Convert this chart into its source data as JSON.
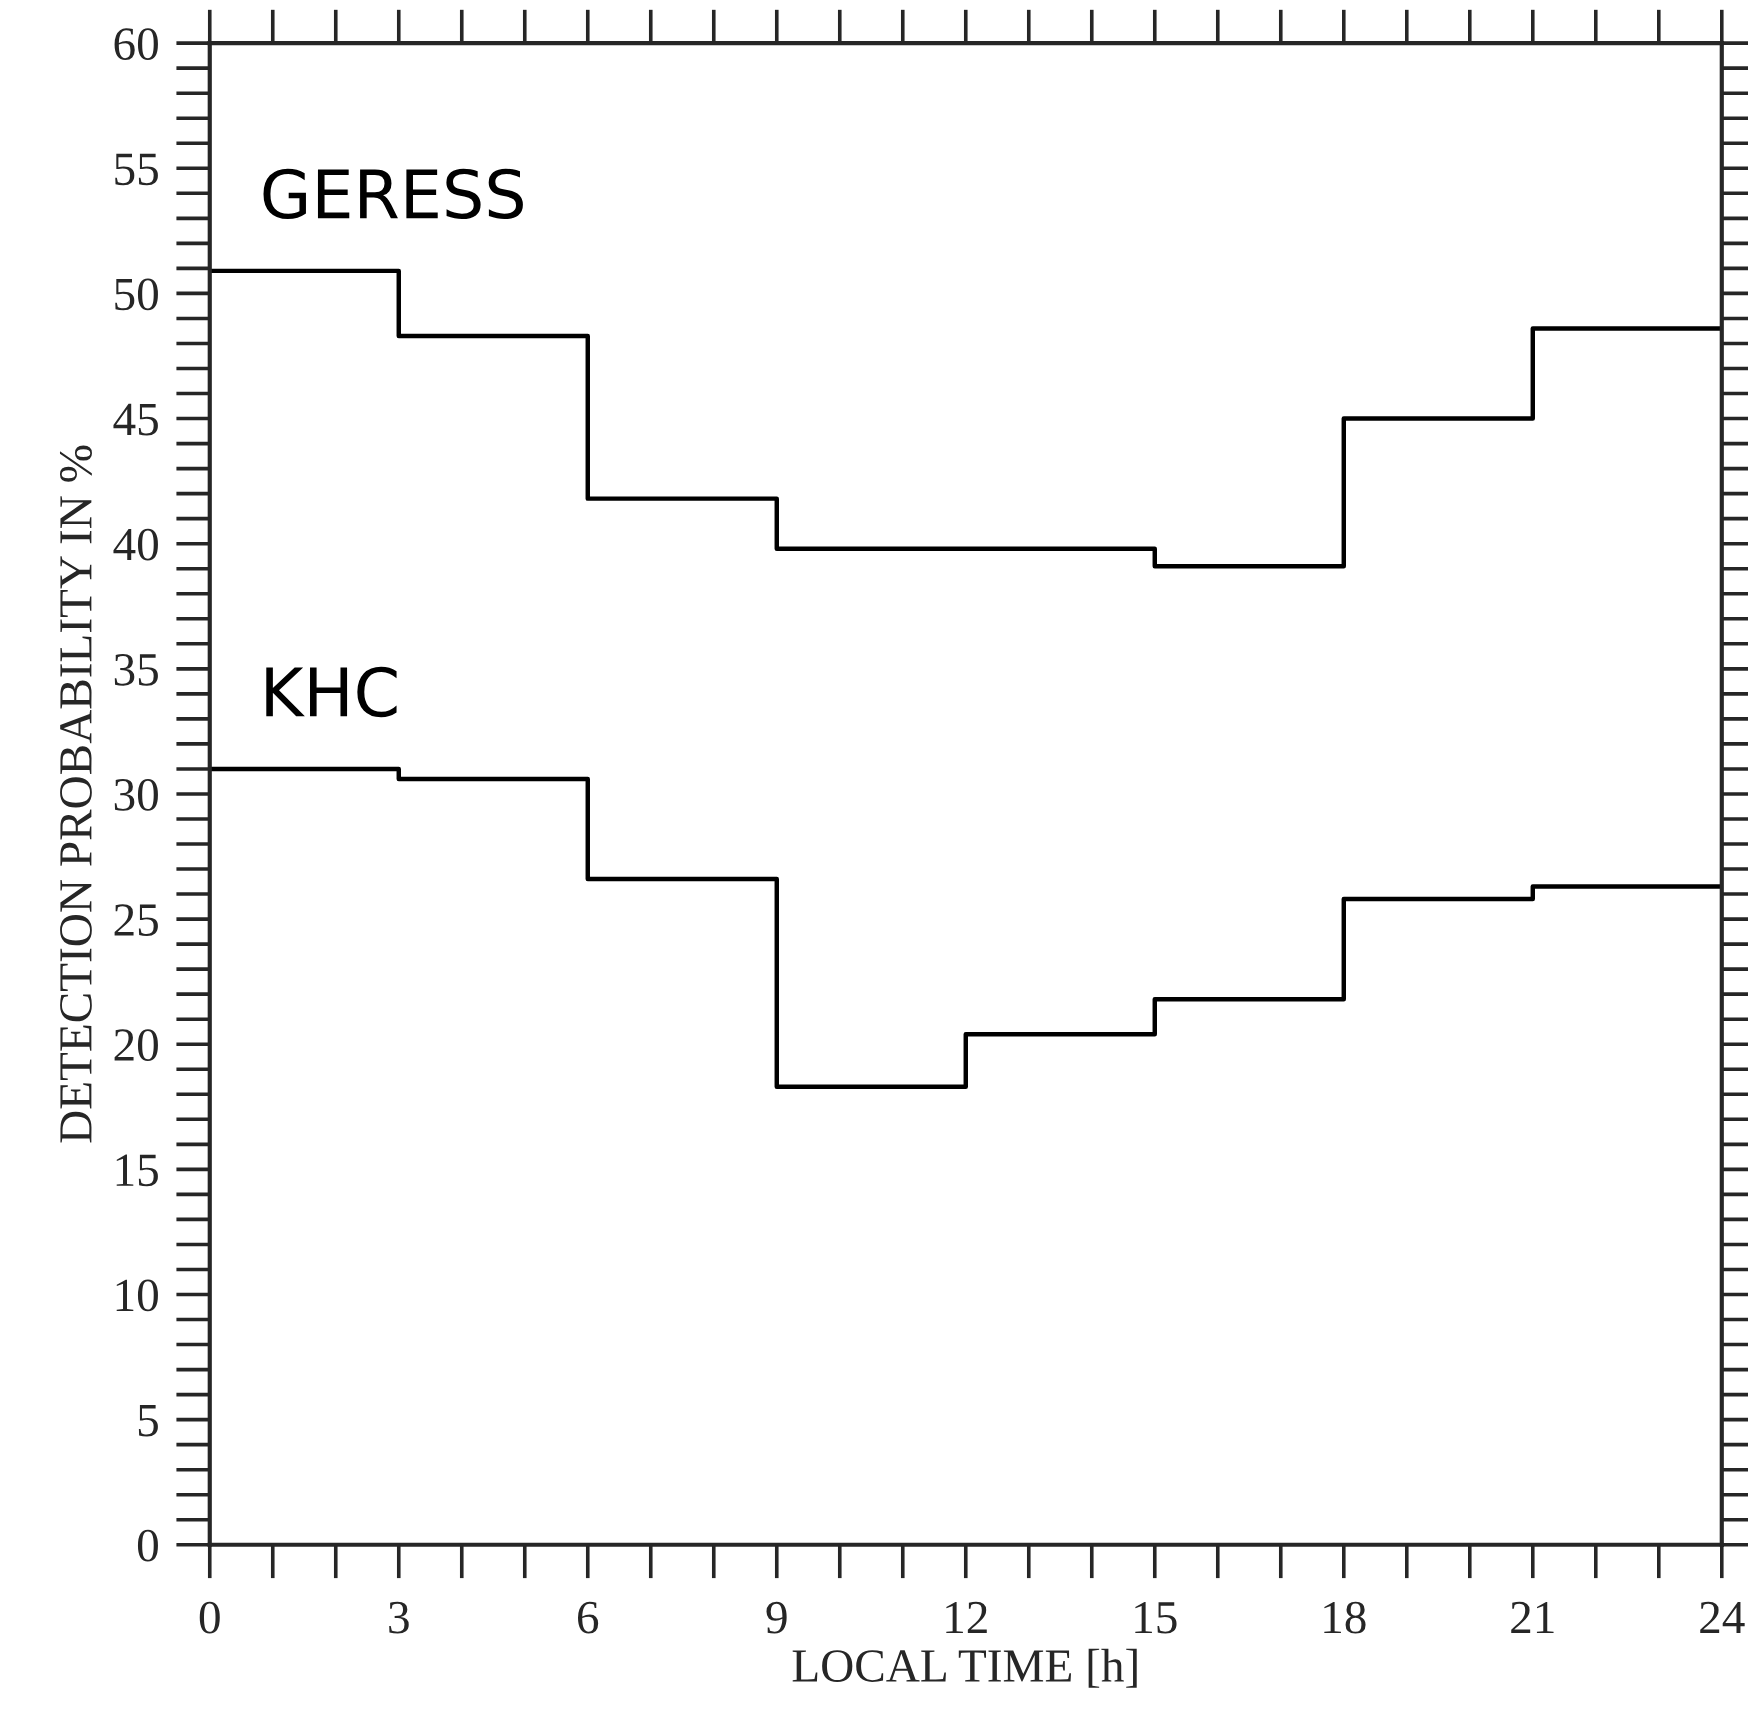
{
  "chart_data": {
    "type": "step",
    "xlabel": "LOCAL TIME [h]",
    "ylabel": "DETECTION PROBABILITY IN %",
    "x": [
      0,
      3,
      6,
      9,
      12,
      15,
      18,
      21,
      24
    ],
    "series": [
      {
        "name": "GERESS",
        "color": "#000000",
        "values": [
          50.9,
          48.3,
          41.8,
          39.8,
          39.8,
          39.1,
          45.0,
          48.6,
          48.6
        ]
      },
      {
        "name": "KHC",
        "color": "#000000",
        "values": [
          31.0,
          30.6,
          26.6,
          18.3,
          20.4,
          21.8,
          25.8,
          26.3,
          26.3
        ]
      }
    ],
    "xlim": [
      0,
      24
    ],
    "xticks": [
      0,
      3,
      6,
      9,
      12,
      15,
      18,
      21,
      24
    ],
    "ylim": [
      0,
      60
    ],
    "yticks": [
      0,
      5,
      10,
      15,
      20,
      25,
      30,
      35,
      40,
      45,
      50,
      55,
      60
    ],
    "grid": false,
    "legend": false
  }
}
